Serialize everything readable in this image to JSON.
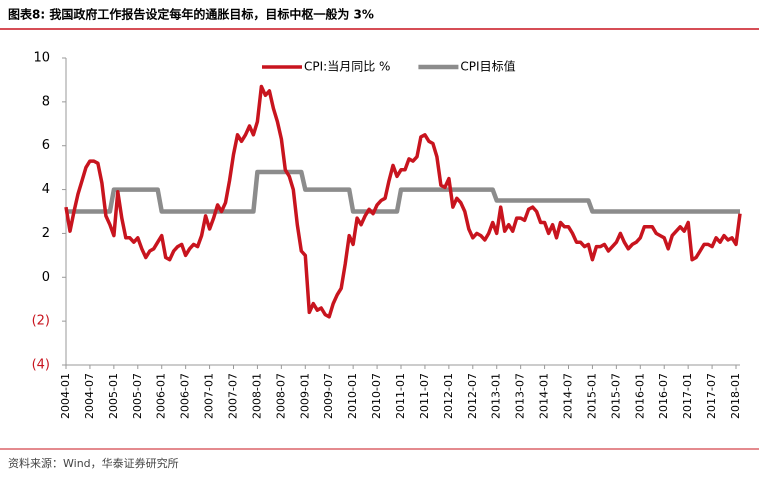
{
  "chart_data": {
    "type": "line",
    "title": "图表8:  我国政府工作报告设定每年的通胀目标，目标中枢一般为 3%",
    "categories": [
      "2004-01",
      null,
      null,
      null,
      null,
      null,
      "2004-07",
      null,
      null,
      null,
      null,
      null,
      "2005-01",
      null,
      null,
      null,
      null,
      null,
      "2005-07",
      null,
      null,
      null,
      null,
      null,
      "2006-01",
      null,
      null,
      null,
      null,
      null,
      "2006-07",
      null,
      null,
      null,
      null,
      null,
      "2007-01",
      null,
      null,
      null,
      null,
      null,
      "2007-07",
      null,
      null,
      null,
      null,
      null,
      "2008-01",
      null,
      null,
      null,
      null,
      null,
      "2008-07",
      null,
      null,
      null,
      null,
      null,
      "2009-01",
      null,
      null,
      null,
      null,
      null,
      "2009-07",
      null,
      null,
      null,
      null,
      null,
      "2010-01",
      null,
      null,
      null,
      null,
      null,
      "2010-07",
      null,
      null,
      null,
      null,
      null,
      "2011-01",
      null,
      null,
      null,
      null,
      null,
      "2011-07",
      null,
      null,
      null,
      null,
      null,
      "2012-01",
      null,
      null,
      null,
      null,
      null,
      "2012-07",
      null,
      null,
      null,
      null,
      null,
      "2013-01",
      null,
      null,
      null,
      null,
      null,
      "2013-07",
      null,
      null,
      null,
      null,
      null,
      "2014-01",
      null,
      null,
      null,
      null,
      null,
      "2014-07",
      null,
      null,
      null,
      null,
      null,
      "2015-01",
      null,
      null,
      null,
      null,
      null,
      "2015-07",
      null,
      null,
      null,
      null,
      null,
      "2016-01",
      null,
      null,
      null,
      null,
      null,
      "2016-07",
      null,
      null,
      null,
      null,
      null,
      "2017-01",
      null,
      null,
      null,
      null,
      null,
      "2017-07",
      null,
      null,
      null,
      null,
      null,
      "2018-01",
      null
    ],
    "series": [
      {
        "name": "CPI:当月同比 %",
        "color": "#c8141e",
        "width": 3.5,
        "values": [
          3.2,
          2.1,
          3.0,
          3.8,
          4.4,
          5.0,
          5.3,
          5.3,
          5.2,
          4.3,
          2.8,
          2.4,
          1.9,
          3.9,
          2.7,
          1.8,
          1.8,
          1.6,
          1.8,
          1.3,
          0.9,
          1.2,
          1.3,
          1.6,
          1.9,
          0.9,
          0.8,
          1.2,
          1.4,
          1.5,
          1.0,
          1.3,
          1.5,
          1.4,
          1.9,
          2.8,
          2.2,
          2.7,
          3.3,
          3.0,
          3.4,
          4.4,
          5.6,
          6.5,
          6.2,
          6.5,
          6.9,
          6.5,
          7.1,
          8.7,
          8.3,
          8.5,
          7.7,
          7.1,
          6.3,
          4.9,
          4.6,
          4.0,
          2.4,
          1.2,
          1.0,
          -1.6,
          -1.2,
          -1.5,
          -1.4,
          -1.7,
          -1.8,
          -1.2,
          -0.8,
          -0.5,
          0.6,
          1.9,
          1.5,
          2.7,
          2.4,
          2.8,
          3.1,
          2.9,
          3.3,
          3.5,
          3.6,
          4.4,
          5.1,
          4.6,
          4.9,
          4.9,
          5.4,
          5.3,
          5.5,
          6.4,
          6.5,
          6.2,
          6.1,
          5.5,
          4.2,
          4.1,
          4.5,
          3.2,
          3.6,
          3.4,
          3.0,
          2.2,
          1.8,
          2.0,
          1.9,
          1.7,
          2.0,
          2.5,
          2.0,
          3.2,
          2.1,
          2.4,
          2.1,
          2.7,
          2.7,
          2.6,
          3.1,
          3.2,
          3.0,
          2.5,
          2.5,
          2.0,
          2.4,
          1.8,
          2.5,
          2.3,
          2.3,
          2.0,
          1.6,
          1.6,
          1.4,
          1.5,
          0.8,
          1.4,
          1.4,
          1.5,
          1.2,
          1.4,
          1.6,
          2.0,
          1.6,
          1.3,
          1.5,
          1.6,
          1.8,
          2.3,
          2.3,
          2.3,
          2.0,
          1.9,
          1.8,
          1.3,
          1.9,
          2.1,
          2.3,
          2.1,
          2.5,
          0.8,
          0.9,
          1.2,
          1.5,
          1.5,
          1.4,
          1.8,
          1.6,
          1.9,
          1.7,
          1.8,
          1.5,
          2.9
        ]
      },
      {
        "name": "CPI目标值",
        "color": "#8c8c8c",
        "width": 4.5,
        "values": [
          3,
          3,
          3,
          3,
          3,
          3,
          3,
          3,
          3,
          3,
          3,
          3,
          4,
          4,
          4,
          4,
          4,
          4,
          4,
          4,
          4,
          4,
          4,
          4,
          3,
          3,
          3,
          3,
          3,
          3,
          3,
          3,
          3,
          3,
          3,
          3,
          3,
          3,
          3,
          3,
          3,
          3,
          3,
          3,
          3,
          3,
          3,
          3,
          4.8,
          4.8,
          4.8,
          4.8,
          4.8,
          4.8,
          4.8,
          4.8,
          4.8,
          4.8,
          4.8,
          4.8,
          4,
          4,
          4,
          4,
          4,
          4,
          4,
          4,
          4,
          4,
          4,
          4,
          3,
          3,
          3,
          3,
          3,
          3,
          3,
          3,
          3,
          3,
          3,
          3,
          4,
          4,
          4,
          4,
          4,
          4,
          4,
          4,
          4,
          4,
          4,
          4,
          4,
          4,
          4,
          4,
          4,
          4,
          4,
          4,
          4,
          4,
          4,
          4,
          3.5,
          3.5,
          3.5,
          3.5,
          3.5,
          3.5,
          3.5,
          3.5,
          3.5,
          3.5,
          3.5,
          3.5,
          3.5,
          3.5,
          3.5,
          3.5,
          3.5,
          3.5,
          3.5,
          3.5,
          3.5,
          3.5,
          3.5,
          3.5,
          3,
          3,
          3,
          3,
          3,
          3,
          3,
          3,
          3,
          3,
          3,
          3,
          3,
          3,
          3,
          3,
          3,
          3,
          3,
          3,
          3,
          3,
          3,
          3,
          3,
          3,
          3,
          3,
          3,
          3,
          3,
          3,
          3,
          3,
          3,
          3,
          3,
          3
        ]
      }
    ],
    "ylim": [
      -4,
      10
    ],
    "yticks": [
      {
        "value": -4,
        "label": "(4)"
      },
      {
        "value": -2,
        "label": "(2)"
      },
      0,
      2,
      4,
      6,
      8,
      10
    ],
    "legend": "top"
  },
  "source": "资料来源：Wind，华泰证券研究所"
}
